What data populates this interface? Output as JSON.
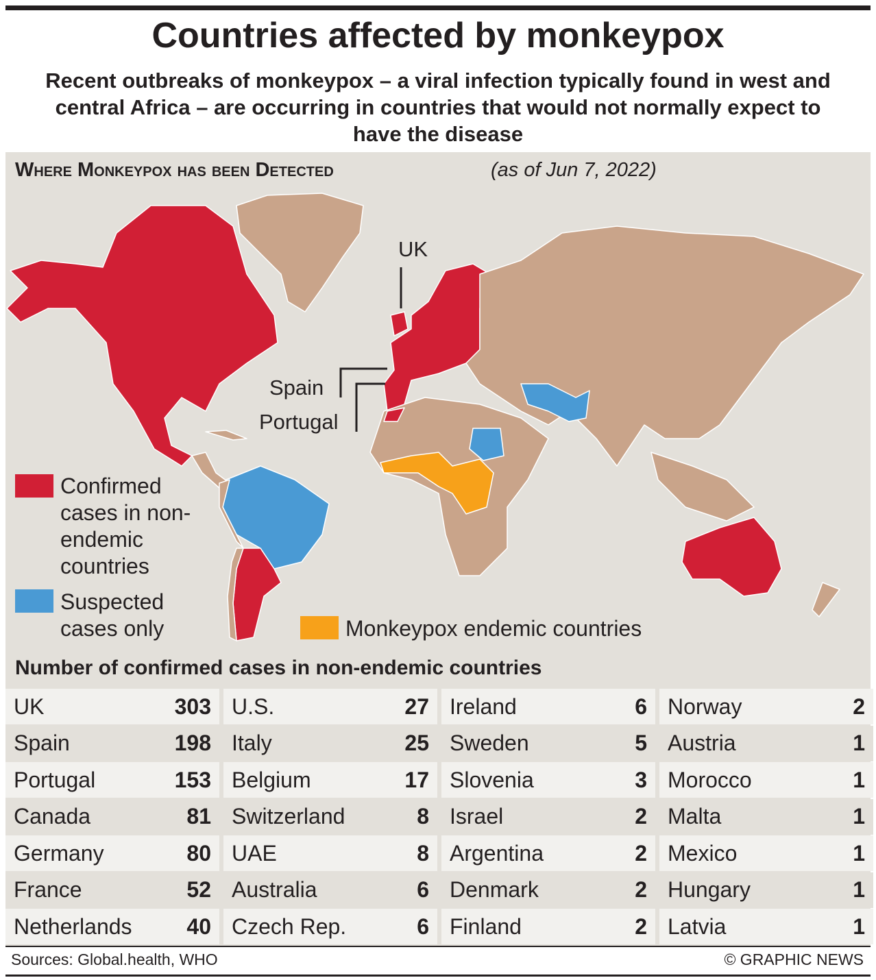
{
  "header": {
    "title": "Countries affected by monkeypox",
    "subtitle": "Recent outbreaks of monkeypox – a viral infection typically found in west and central Africa – are occurring in countries that would not normally expect to have the disease"
  },
  "map": {
    "heading": "Where Monkeypox has been Detected",
    "date": "(as of Jun 7, 2022)",
    "labels": [
      "UK",
      "Spain",
      "Portugal"
    ],
    "legend": [
      "Confirmed cases in non-endemic countries",
      "Suspected cases only",
      "Monkeypox endemic countries"
    ]
  },
  "table": {
    "title": "Number of confirmed cases in non-endemic countries",
    "columns": [
      [
        {
          "country": "UK",
          "cases": 303
        },
        {
          "country": "Spain",
          "cases": 198
        },
        {
          "country": "Portugal",
          "cases": 153
        },
        {
          "country": "Canada",
          "cases": 81
        },
        {
          "country": "Germany",
          "cases": 80
        },
        {
          "country": "France",
          "cases": 52
        },
        {
          "country": "Netherlands",
          "cases": 40
        }
      ],
      [
        {
          "country": "U.S.",
          "cases": 27
        },
        {
          "country": "Italy",
          "cases": 25
        },
        {
          "country": "Belgium",
          "cases": 17
        },
        {
          "country": "Switzerland",
          "cases": 8
        },
        {
          "country": "UAE",
          "cases": 8
        },
        {
          "country": "Australia",
          "cases": 6
        },
        {
          "country": "Czech Rep.",
          "cases": 6
        }
      ],
      [
        {
          "country": "Ireland",
          "cases": 6
        },
        {
          "country": "Sweden",
          "cases": 5
        },
        {
          "country": "Slovenia",
          "cases": 3
        },
        {
          "country": "Israel",
          "cases": 2
        },
        {
          "country": "Argentina",
          "cases": 2
        },
        {
          "country": "Denmark",
          "cases": 2
        },
        {
          "country": "Finland",
          "cases": 2
        }
      ],
      [
        {
          "country": "Norway",
          "cases": 2
        },
        {
          "country": "Austria",
          "cases": 1
        },
        {
          "country": "Morocco",
          "cases": 1
        },
        {
          "country": "Malta",
          "cases": 1
        },
        {
          "country": "Mexico",
          "cases": 1
        },
        {
          "country": "Hungary",
          "cases": 1
        },
        {
          "country": "Latvia",
          "cases": 1
        }
      ]
    ]
  },
  "footer": {
    "source": "Sources: Global.health, WHO",
    "credit": "© GRAPHIC NEWS"
  }
}
